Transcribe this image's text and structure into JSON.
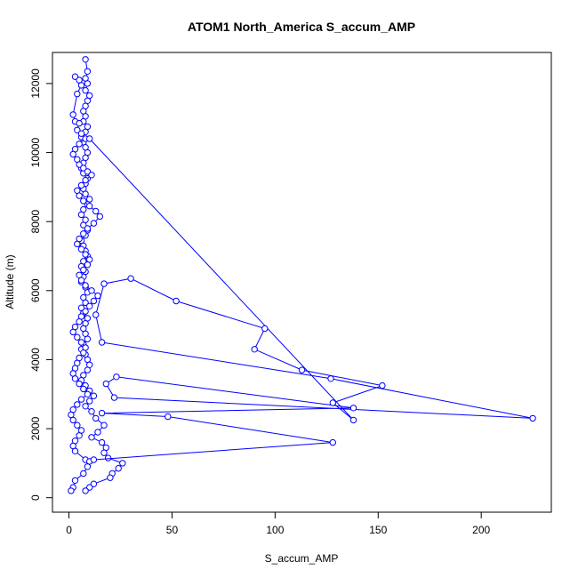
{
  "chart_data": {
    "type": "line",
    "title": "ATOM1 North_America S_accum_AMP",
    "xlabel": "S_accum_AMP",
    "ylabel": "Altitude (m)",
    "xlim": [
      -8,
      234
    ],
    "ylim": [
      -420,
      12900
    ],
    "x_ticks": [
      0,
      50,
      100,
      150,
      200
    ],
    "y_ticks": [
      0,
      2000,
      4000,
      6000,
      8000,
      10000,
      12000
    ],
    "grid": false,
    "legend": "none",
    "marker": "open-circle",
    "color": "#0000ff",
    "series": [
      {
        "x": [
          8,
          9,
          8,
          9,
          8,
          10,
          9,
          8,
          7,
          8,
          7,
          9,
          8,
          6,
          7,
          8,
          9,
          8,
          7,
          6,
          7,
          9,
          8,
          7,
          8,
          10,
          9,
          7,
          6,
          8,
          7,
          9,
          8,
          6,
          7,
          8,
          9,
          7,
          6,
          8,
          7,
          6,
          8,
          9,
          7,
          8,
          6,
          7,
          9,
          8,
          7,
          8,
          9,
          7,
          6,
          8,
          9,
          10,
          9,
          7,
          6,
          8,
          10,
          12,
          10,
          8,
          11,
          13,
          17,
          14,
          11,
          16,
          18,
          17,
          19,
          26,
          24,
          21,
          20,
          12,
          10,
          8
        ],
        "y": [
          12700,
          12350,
          12150,
          12000,
          11800,
          11650,
          11500,
          11350,
          11200,
          11050,
          10900,
          10750,
          10600,
          10450,
          10300,
          10150,
          10000,
          9850,
          9700,
          9550,
          9400,
          9250,
          9100,
          8950,
          8800,
          8650,
          8500,
          8350,
          8200,
          8050,
          7900,
          7750,
          7600,
          7450,
          7300,
          7150,
          7000,
          6850,
          6700,
          6550,
          6400,
          6250,
          6100,
          5950,
          5800,
          5650,
          5500,
          5350,
          5200,
          5050,
          4900,
          4750,
          4600,
          4450,
          4300,
          4150,
          4000,
          3850,
          3700,
          3550,
          3400,
          3250,
          3100,
          2950,
          2800,
          2650,
          2500,
          2300,
          2100,
          1900,
          1750,
          1600,
          1450,
          1300,
          1150,
          1000,
          850,
          700,
          580,
          400,
          300,
          200
        ]
      },
      {
        "x": [
          3,
          5,
          6,
          4,
          2,
          3,
          5,
          4,
          6,
          8,
          5,
          3,
          2,
          4,
          5,
          7,
          9,
          11,
          8,
          6,
          4,
          5,
          7,
          10,
          13,
          15,
          12,
          9,
          7,
          5,
          4,
          6,
          8,
          10,
          9,
          7,
          5,
          6,
          8,
          11,
          14,
          12,
          10,
          8,
          6,
          5,
          3,
          2,
          4,
          6,
          8,
          7,
          5,
          4,
          3,
          2,
          3,
          5,
          7,
          9,
          6,
          4,
          2,
          1,
          2,
          4,
          6,
          5,
          3,
          2,
          3,
          8,
          10,
          9,
          7,
          3,
          2,
          1
        ],
        "y": [
          12200,
          12100,
          11950,
          11700,
          11100,
          10900,
          10850,
          10650,
          10550,
          10400,
          10250,
          10100,
          9950,
          9800,
          9650,
          9550,
          9450,
          9350,
          9200,
          9050,
          8900,
          8750,
          8600,
          8450,
          8300,
          8150,
          7950,
          7800,
          7650,
          7500,
          7350,
          7200,
          7050,
          6900,
          6750,
          6600,
          6450,
          6300,
          6150,
          6000,
          5850,
          5700,
          5550,
          5400,
          5250,
          5100,
          4950,
          4800,
          4650,
          4500,
          4350,
          4200,
          4050,
          3900,
          3750,
          3600,
          3450,
          3300,
          3150,
          3000,
          2850,
          2700,
          2550,
          2400,
          2250,
          2100,
          1950,
          1800,
          1650,
          1500,
          1350,
          1100,
          1050,
          900,
          700,
          500,
          300,
          200
        ]
      },
      {
        "x": [
          10,
          138,
          128,
          152,
          113,
          90,
          95,
          52,
          30,
          17,
          13,
          16,
          127,
          225,
          22,
          18,
          23,
          138,
          16,
          48,
          128,
          12
        ],
        "y": [
          10400,
          2250,
          2750,
          3250,
          3700,
          4300,
          4900,
          5700,
          6350,
          6200,
          5300,
          4500,
          3450,
          2300,
          2900,
          3300,
          3500,
          2600,
          2450,
          2350,
          1600,
          1100
        ]
      }
    ]
  }
}
